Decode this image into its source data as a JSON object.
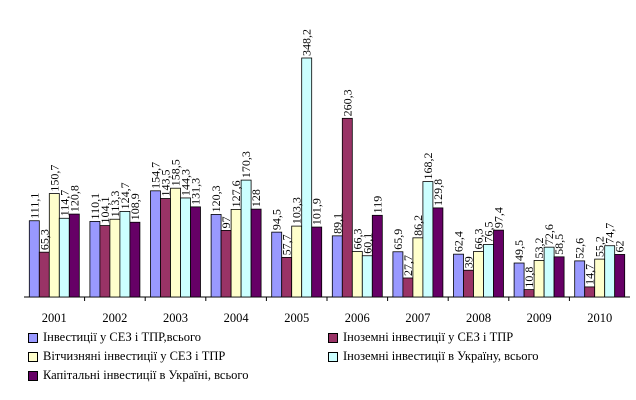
{
  "chart_data": {
    "type": "bar",
    "categories": [
      "2001",
      "2002",
      "2003",
      "2004",
      "2005",
      "2006",
      "2007",
      "2008",
      "2009",
      "2010"
    ],
    "ylim": [
      0,
      350
    ],
    "grid": false,
    "legend_position": "bottom",
    "series": [
      {
        "name": "Інвестиції у СЕЗ і ТПР,всього",
        "color": "#9999ff",
        "values": [
          111.1,
          110.1,
          154.7,
          120.3,
          94.5,
          89.1,
          65.9,
          62.4,
          49.5,
          52.6
        ],
        "labels": [
          "111,1",
          "110,1",
          "154,7",
          "120,3",
          "94,5",
          "89,1",
          "65,9",
          "62,4",
          "49,5",
          "52,6"
        ]
      },
      {
        "name": "Іноземні інвестиції у СЕЗ і ТПР",
        "color": "#993366",
        "values": [
          65.3,
          104.1,
          143.5,
          97,
          57.7,
          260.3,
          27.7,
          39,
          10.8,
          14.7
        ],
        "labels": [
          "65,3",
          "104,1",
          "143,5",
          "97",
          "57,7",
          "260,3",
          "27,7",
          "39",
          "10,8",
          "14,7"
        ]
      },
      {
        "name": "Вітчизняні інвестиції у СЕЗ і ТПР",
        "color": "#ffffcc",
        "values": [
          150.7,
          113.3,
          158.5,
          127.6,
          103.3,
          66.3,
          86.2,
          66.3,
          53.2,
          55.2
        ],
        "labels": [
          "150,7",
          "113,3",
          "158,5",
          "127,6",
          "103,3",
          "66,3",
          "86,2",
          "66,3",
          "53,2",
          "55,2"
        ]
      },
      {
        "name": "Іноземні інвестиції в Україну, всього",
        "color": "#ccffff",
        "values": [
          114.7,
          124.7,
          144.3,
          170.3,
          348.2,
          60.1,
          168.2,
          76.5,
          72.6,
          74.7
        ],
        "labels": [
          "114,7",
          "124,7",
          "144,3",
          "170,3",
          "348,2",
          "60,1",
          "168,2",
          "76,5",
          "72,6",
          "74,7"
        ]
      },
      {
        "name": "Капітальні інвестиції в Україні, всього",
        "color": "#660066",
        "values": [
          120.8,
          108.9,
          131.3,
          128,
          101.9,
          119,
          129.8,
          97.4,
          58.5,
          62
        ],
        "labels": [
          "120,8",
          "108,9",
          "131,3",
          "128",
          "101,9",
          "119",
          "129,8",
          "97,4",
          "58,5",
          "62"
        ]
      }
    ]
  }
}
